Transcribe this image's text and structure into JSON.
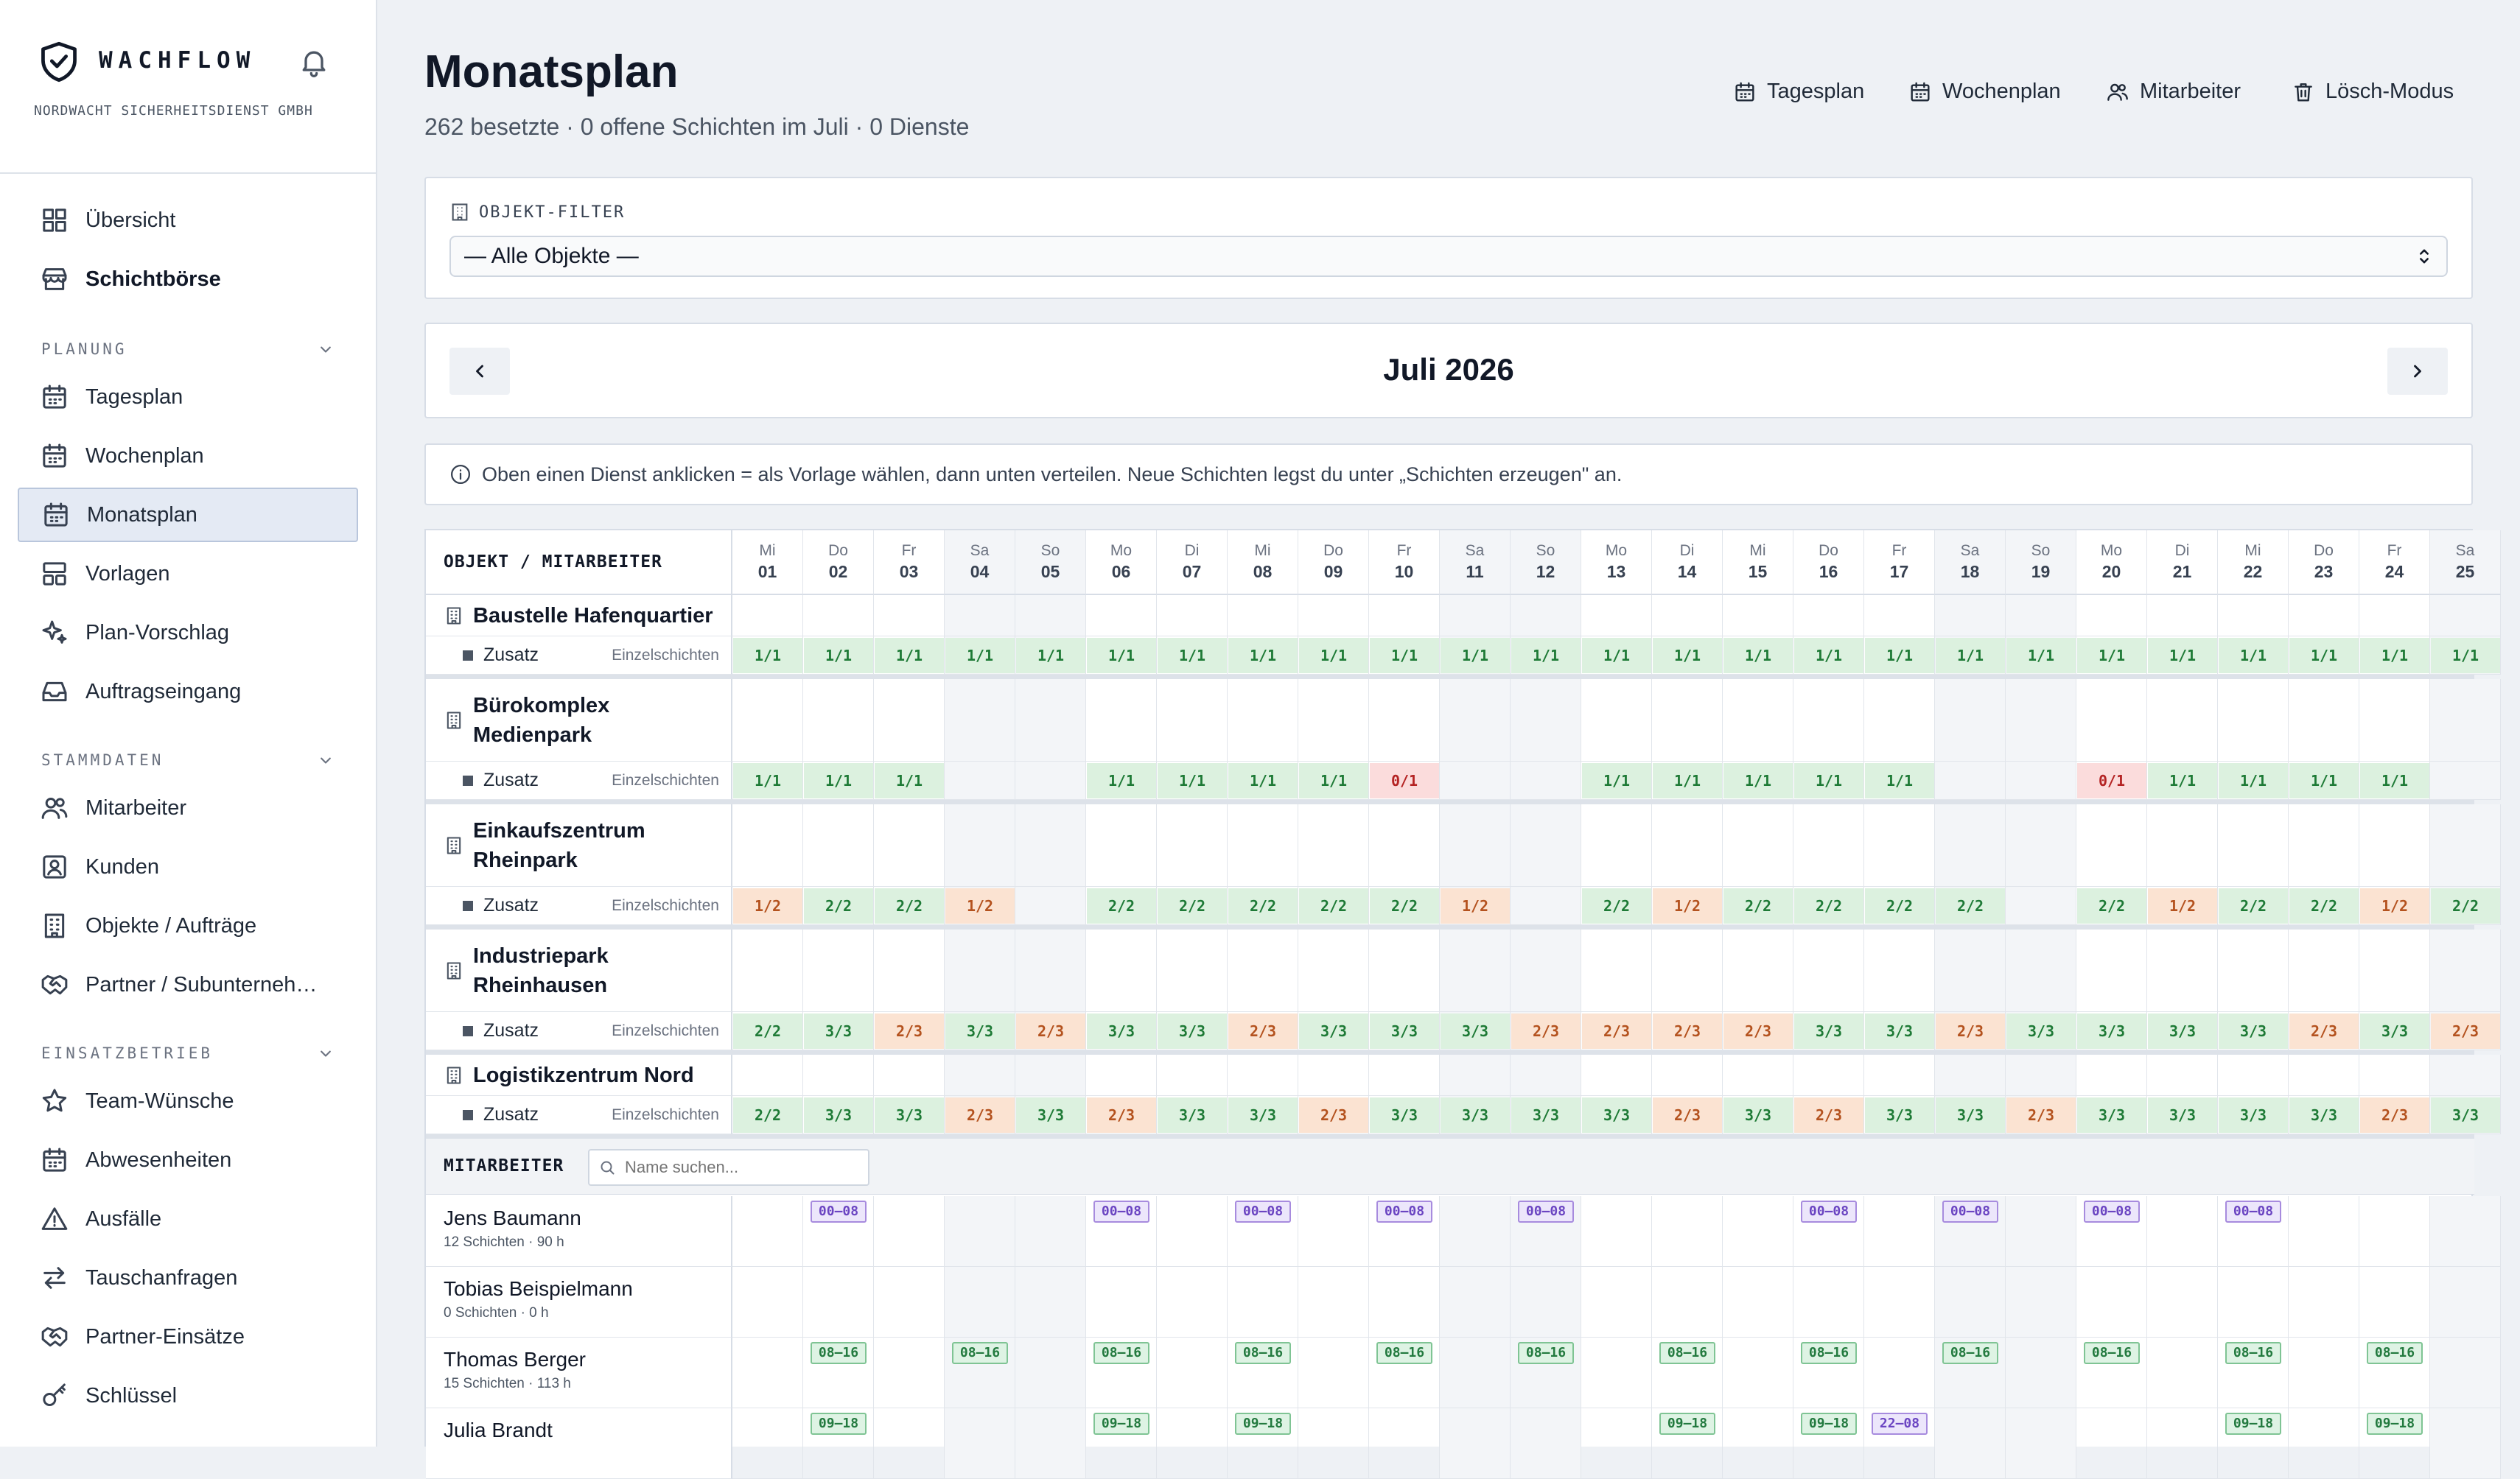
{
  "brand": {
    "app_name": "WACHFLOW",
    "company": "NORDWACHT SICHERHEITSDIENST GMBH"
  },
  "sidebar": {
    "top_items": [
      {
        "label": "Übersicht",
        "icon": "grid-icon"
      },
      {
        "label": "Schichtbörse",
        "icon": "store-icon",
        "bold": true
      }
    ],
    "sections": [
      {
        "title": "PLANUNG",
        "items": [
          {
            "label": "Tagesplan",
            "icon": "calendar-icon"
          },
          {
            "label": "Wochenplan",
            "icon": "calendar-icon"
          },
          {
            "label": "Monatsplan",
            "icon": "calendar-icon",
            "active": true
          },
          {
            "label": "Vorlagen",
            "icon": "template-icon"
          },
          {
            "label": "Plan-Vorschlag",
            "icon": "sparkle-icon"
          },
          {
            "label": "Auftragseingang",
            "icon": "inbox-icon"
          }
        ]
      },
      {
        "title": "STAMMDATEN",
        "items": [
          {
            "label": "Mitarbeiter",
            "icon": "users-icon"
          },
          {
            "label": "Kunden",
            "icon": "contact-icon"
          },
          {
            "label": "Objekte / Aufträge",
            "icon": "building-icon"
          },
          {
            "label": "Partner / Subunterneh…",
            "icon": "handshake-icon"
          }
        ]
      },
      {
        "title": "EINSATZBETRIEB",
        "items": [
          {
            "label": "Team-Wünsche",
            "icon": "star-icon"
          },
          {
            "label": "Abwesenheiten",
            "icon": "calendar-icon"
          },
          {
            "label": "Ausfälle",
            "icon": "warning-icon"
          },
          {
            "label": "Tauschanfragen",
            "icon": "swap-icon"
          },
          {
            "label": "Partner-Einsätze",
            "icon": "handshake-icon"
          },
          {
            "label": "Schlüssel",
            "icon": "key-icon"
          }
        ]
      }
    ]
  },
  "header": {
    "title": "Monatsplan",
    "subtitle": "262 besetzte · 0 offene Schichten im Juli · 0 Dienste",
    "buttons": [
      {
        "label": "Tagesplan",
        "icon": "calendar-icon"
      },
      {
        "label": "Wochenplan",
        "icon": "calendar-icon"
      },
      {
        "label": "Mitarbeiter",
        "icon": "users-icon"
      },
      {
        "label": "Lösch-Modus",
        "icon": "trash-icon"
      }
    ]
  },
  "filter": {
    "label": "OBJEKT-FILTER",
    "selected": "— Alle Objekte —"
  },
  "month": {
    "title": "Juli 2026"
  },
  "hint": "Oben einen Dienst anklicken = als Vorlage wählen, dann unten verteilen. Neue Schichten legst du unter „Schichten erzeugen\" an.",
  "grid": {
    "first_col_header": "OBJEKT / MITARBEITER",
    "days": [
      {
        "dow": "Mi",
        "num": "01"
      },
      {
        "dow": "Do",
        "num": "02"
      },
      {
        "dow": "Fr",
        "num": "03"
      },
      {
        "dow": "Sa",
        "num": "04",
        "weekend": true
      },
      {
        "dow": "So",
        "num": "05",
        "weekend": true
      },
      {
        "dow": "Mo",
        "num": "06"
      },
      {
        "dow": "Di",
        "num": "07"
      },
      {
        "dow": "Mi",
        "num": "08"
      },
      {
        "dow": "Do",
        "num": "09"
      },
      {
        "dow": "Fr",
        "num": "10"
      },
      {
        "dow": "Sa",
        "num": "11",
        "weekend": true
      },
      {
        "dow": "So",
        "num": "12",
        "weekend": true
      },
      {
        "dow": "Mo",
        "num": "13"
      },
      {
        "dow": "Di",
        "num": "14"
      },
      {
        "dow": "Mi",
        "num": "15"
      },
      {
        "dow": "Do",
        "num": "16"
      },
      {
        "dow": "Fr",
        "num": "17"
      },
      {
        "dow": "Sa",
        "num": "18",
        "weekend": true
      },
      {
        "dow": "So",
        "num": "19",
        "weekend": true
      },
      {
        "dow": "Mo",
        "num": "20"
      },
      {
        "dow": "Di",
        "num": "21"
      },
      {
        "dow": "Mi",
        "num": "22"
      },
      {
        "dow": "Do",
        "num": "23"
      },
      {
        "dow": "Fr",
        "num": "24"
      },
      {
        "dow": "Sa",
        "num": "25",
        "weekend": true
      }
    ],
    "zusatz_label": "Zusatz",
    "zusatz_type": "Einzelschichten",
    "objects": [
      {
        "name": "Baustelle Hafenquartier",
        "coverage": [
          "1/1",
          "1/1",
          "1/1",
          "1/1",
          "1/1",
          "1/1",
          "1/1",
          "1/1",
          "1/1",
          "1/1",
          "1/1",
          "1/1",
          "1/1",
          "1/1",
          "1/1",
          "1/1",
          "1/1",
          "1/1",
          "1/1",
          "1/1",
          "1/1",
          "1/1",
          "1/1",
          "1/1",
          "1/1"
        ]
      },
      {
        "name": "Bürokomplex Medienpark",
        "coverage": [
          "1/1",
          "1/1",
          "1/1",
          "",
          "",
          "1/1",
          "1/1",
          "1/1",
          "1/1",
          "0/1",
          "",
          "",
          "1/1",
          "1/1",
          "1/1",
          "1/1",
          "1/1",
          "",
          "",
          "0/1",
          "1/1",
          "1/1",
          "1/1",
          "1/1",
          ""
        ]
      },
      {
        "name": "Einkaufszentrum Rheinpark",
        "coverage": [
          "1/2",
          "2/2",
          "2/2",
          "1/2",
          "",
          "2/2",
          "2/2",
          "2/2",
          "2/2",
          "2/2",
          "1/2",
          "",
          "2/2",
          "1/2",
          "2/2",
          "2/2",
          "2/2",
          "2/2",
          "",
          "2/2",
          "1/2",
          "2/2",
          "2/2",
          "1/2",
          "2/2"
        ]
      },
      {
        "name": "Industriepark Rheinhausen",
        "coverage": [
          "2/2",
          "3/3",
          "2/3",
          "3/3",
          "2/3",
          "3/3",
          "3/3",
          "2/3",
          "3/3",
          "3/3",
          "3/3",
          "2/3",
          "2/3",
          "2/3",
          "2/3",
          "3/3",
          "3/3",
          "2/3",
          "3/3",
          "3/3",
          "3/3",
          "3/3",
          "2/3",
          "3/3",
          "2/3"
        ]
      },
      {
        "name": "Logistikzentrum Nord",
        "coverage": [
          "2/2",
          "3/3",
          "3/3",
          "2/3",
          "3/3",
          "2/3",
          "3/3",
          "3/3",
          "2/3",
          "3/3",
          "3/3",
          "3/3",
          "3/3",
          "2/3",
          "3/3",
          "2/3",
          "3/3",
          "3/3",
          "2/3",
          "3/3",
          "3/3",
          "3/3",
          "3/3",
          "2/3",
          "3/3"
        ]
      }
    ],
    "staff_header": "MITARBEITER",
    "search_placeholder": "Name suchen...",
    "employees": [
      {
        "name": "Jens Baumann",
        "summary": "12 Schichten · 90 h",
        "shifts": [
          {
            "day": 1,
            "label": "00–08",
            "kind": "night"
          },
          {
            "day": 5,
            "label": "00–08",
            "kind": "night"
          },
          {
            "day": 7,
            "label": "00–08",
            "kind": "night"
          },
          {
            "day": 9,
            "label": "00–08",
            "kind": "night"
          },
          {
            "day": 11,
            "label": "00–08",
            "kind": "night"
          },
          {
            "day": 15,
            "label": "00–08",
            "kind": "night"
          },
          {
            "day": 17,
            "label": "00–08",
            "kind": "night"
          },
          {
            "day": 19,
            "label": "00–08",
            "kind": "night"
          },
          {
            "day": 21,
            "label": "00–08",
            "kind": "night"
          }
        ]
      },
      {
        "name": "Tobias Beispielmann",
        "summary": "0 Schichten · 0 h",
        "shifts": []
      },
      {
        "name": "Thomas Berger",
        "summary": "15 Schichten · 113 h",
        "shifts": [
          {
            "day": 1,
            "label": "08–16",
            "kind": "day"
          },
          {
            "day": 3,
            "label": "08–16",
            "kind": "day"
          },
          {
            "day": 5,
            "label": "08–16",
            "kind": "day"
          },
          {
            "day": 7,
            "label": "08–16",
            "kind": "day"
          },
          {
            "day": 9,
            "label": "08–16",
            "kind": "day"
          },
          {
            "day": 11,
            "label": "08–16",
            "kind": "day"
          },
          {
            "day": 13,
            "label": "08–16",
            "kind": "day"
          },
          {
            "day": 15,
            "label": "08–16",
            "kind": "day"
          },
          {
            "day": 17,
            "label": "08–16",
            "kind": "day"
          },
          {
            "day": 19,
            "label": "08–16",
            "kind": "day"
          },
          {
            "day": 21,
            "label": "08–16",
            "kind": "day"
          },
          {
            "day": 23,
            "label": "08–16",
            "kind": "day"
          }
        ]
      },
      {
        "name": "Julia Brandt",
        "summary": "",
        "shifts": [
          {
            "day": 1,
            "label": "09–18",
            "kind": "day"
          },
          {
            "day": 5,
            "label": "09–18",
            "kind": "day"
          },
          {
            "day": 7,
            "label": "09–18",
            "kind": "day"
          },
          {
            "day": 13,
            "label": "09–18",
            "kind": "day"
          },
          {
            "day": 15,
            "label": "09–18",
            "kind": "day"
          },
          {
            "day": 16,
            "label": "22–08",
            "kind": "night"
          },
          {
            "day": 21,
            "label": "09–18",
            "kind": "day"
          },
          {
            "day": 23,
            "label": "09–18",
            "kind": "day"
          }
        ]
      }
    ]
  },
  "colors": {
    "ok": "#dcf1df",
    "bad": "#fbdcdc",
    "partial": "#fbe3d2",
    "active_nav": "#e4eaf4"
  }
}
